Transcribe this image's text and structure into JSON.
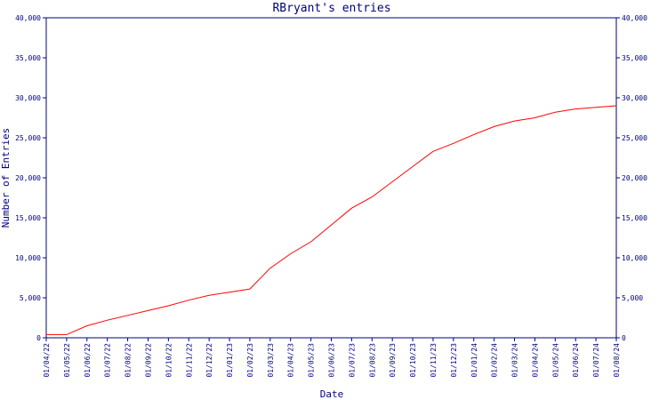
{
  "chart_data": {
    "type": "line",
    "title": "RBryant's entries",
    "xlabel": "Date",
    "ylabel": "Number of Entries",
    "ylim": [
      0,
      40000
    ],
    "yticks": [
      0,
      5000,
      10000,
      15000,
      20000,
      25000,
      30000,
      35000,
      40000
    ],
    "ytick_labels": [
      "0",
      "5,000",
      "10,000",
      "15,000",
      "20,000",
      "25,000",
      "30,000",
      "35,000",
      "40,000"
    ],
    "xtick_labels": [
      "01/04/22",
      "01/05/22",
      "01/06/22",
      "01/07/22",
      "01/08/22",
      "01/09/22",
      "01/10/22",
      "01/11/22",
      "01/12/22",
      "01/01/23",
      "01/02/23",
      "01/03/23",
      "01/04/23",
      "01/05/23",
      "01/06/23",
      "01/07/23",
      "01/08/23",
      "01/09/23",
      "01/10/23",
      "01/11/23",
      "01/12/23",
      "01/01/24",
      "01/02/24",
      "01/03/24",
      "01/04/24",
      "01/05/24",
      "01/06/24",
      "01/07/24",
      "01/08/24"
    ],
    "grid": false,
    "legend": "none",
    "line_color": "#ff0000",
    "axis_color": "#000080",
    "series": [
      {
        "x": [
          "01/04/22",
          "01/05/22",
          "01/06/22",
          "01/07/22",
          "01/08/22",
          "01/09/22",
          "01/10/22",
          "01/11/22",
          "01/12/22",
          "01/01/23",
          "01/02/23",
          "01/03/23",
          "01/04/23",
          "01/05/23",
          "01/06/23",
          "01/07/23",
          "01/08/23",
          "01/09/23",
          "01/10/23",
          "01/11/23",
          "01/12/23",
          "01/01/24",
          "01/02/24",
          "01/03/24",
          "01/04/24",
          "01/05/24",
          "01/06/24",
          "01/07/24",
          "01/08/24"
        ],
        "values": [
          400,
          400,
          1500,
          2200,
          2800,
          3400,
          4000,
          4700,
          5300,
          5700,
          6100,
          8700,
          10500,
          12000,
          14100,
          16200,
          17600,
          19500,
          21400,
          23300,
          24300,
          25400,
          26400,
          27100,
          27500,
          28200,
          28600,
          28800,
          29000
        ]
      }
    ]
  }
}
